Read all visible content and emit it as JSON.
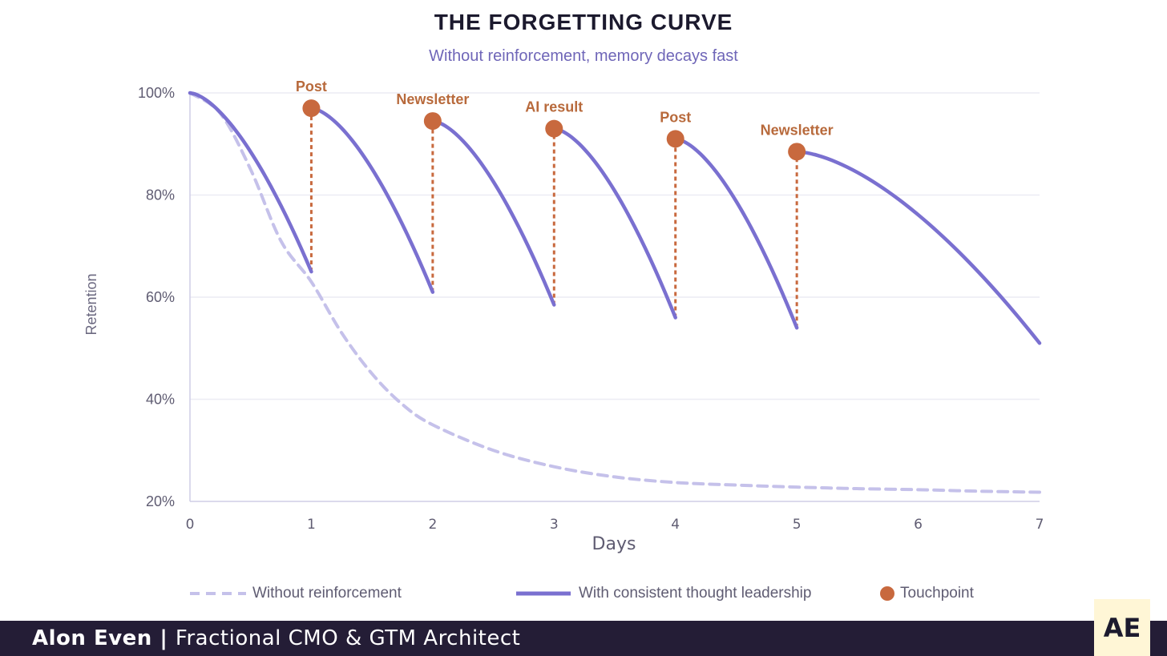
{
  "chart_data": {
    "type": "line",
    "title": "THE FORGETTING CURVE",
    "subtitle": "Without reinforcement, memory decays fast",
    "xlabel": "Days",
    "ylabel": "Retention",
    "xlim": [
      0,
      7
    ],
    "ylim": [
      20,
      100
    ],
    "x_ticks": [
      "0",
      "1",
      "2",
      "3",
      "4",
      "5",
      "6",
      "7"
    ],
    "y_ticks": [
      "20%",
      "40%",
      "60%",
      "80%",
      "100%"
    ],
    "series": [
      {
        "name": "Without reinforcement",
        "style": "dashed",
        "color": "#c5c1ea",
        "x": [
          0,
          0.25,
          0.5,
          0.75,
          1,
          1.25,
          1.5,
          1.75,
          2,
          2.5,
          3,
          3.5,
          4,
          4.5,
          5,
          5.5,
          6,
          6.5,
          7
        ],
        "y": [
          100,
          96,
          85,
          71,
          63,
          53,
          45,
          39,
          35,
          30,
          26.8,
          24.8,
          23.7,
          23.2,
          22.8,
          22.5,
          22.3,
          22.0,
          21.8
        ]
      },
      {
        "name": "With consistent thought leadership",
        "style": "solid",
        "color": "#7a70d0",
        "segments": [
          {
            "x0": 0,
            "y0": 100,
            "x1": 1,
            "y1": 65
          },
          {
            "x0": 1,
            "y0": 97,
            "x1": 2,
            "y1": 61
          },
          {
            "x0": 2,
            "y0": 94.5,
            "x1": 3,
            "y1": 58.5
          },
          {
            "x0": 3,
            "y0": 93,
            "x1": 4,
            "y1": 56
          },
          {
            "x0": 4,
            "y0": 91,
            "x1": 5,
            "y1": 54
          },
          {
            "x0": 5,
            "y0": 88.5,
            "x1": 7,
            "y1": 51
          }
        ]
      }
    ],
    "touchpoints": [
      {
        "x": 1,
        "y": 97,
        "label": "Post",
        "drop_from": 65
      },
      {
        "x": 2,
        "y": 94.5,
        "label": "Newsletter",
        "drop_from": 61
      },
      {
        "x": 3,
        "y": 93,
        "label": "AI result",
        "drop_from": 58.5
      },
      {
        "x": 4,
        "y": 91,
        "label": "Post",
        "drop_from": 56
      },
      {
        "x": 5,
        "y": 88.5,
        "label": "Newsletter",
        "drop_from": 54
      }
    ],
    "touchpoint_color": "#c8693e",
    "legend": {
      "without": "Without reinforcement",
      "with": "With consistent thought leadership",
      "touchpoint": "Touchpoint"
    }
  },
  "footer": {
    "name": "Alon Even",
    "separator": " | ",
    "role": "Fractional CMO & GTM Architect",
    "logo": "AE"
  }
}
